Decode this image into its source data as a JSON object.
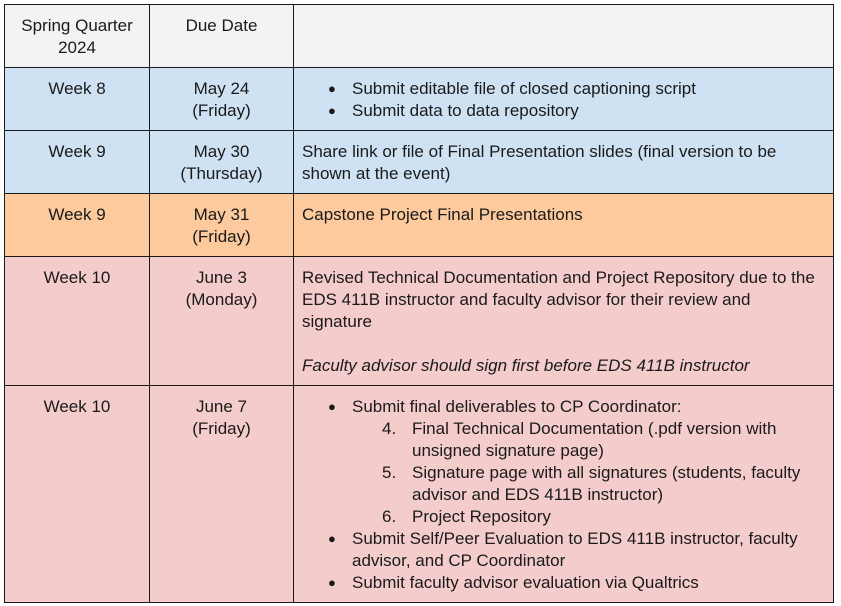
{
  "header": {
    "col1": "Spring Quarter 2024",
    "col2": "Due Date",
    "col3": ""
  },
  "rows": [
    {
      "week": "Week 8",
      "date": "May 24",
      "day": "(Friday)",
      "bullets": [
        "Submit editable file of closed captioning script",
        "Submit data to data repository"
      ]
    },
    {
      "week": "Week 9",
      "date": "May 30",
      "day": "(Thursday)",
      "text": "Share link or file of Final Presentation slides (final version to be shown at the event)"
    },
    {
      "week": "Week 9",
      "date": "May 31",
      "day": "(Friday)",
      "text": "Capstone Project Final Presentations"
    },
    {
      "week": "Week 10",
      "date": "June 3",
      "day": "(Monday)",
      "text": "Revised Technical Documentation and Project Repository due to the EDS 411B instructor and faculty advisor for their review and signature",
      "note": "Faculty advisor should sign first before EDS 411B instructor"
    },
    {
      "week": "Week 10",
      "date": "June 7",
      "day": "(Friday)",
      "bullet1": "Submit final deliverables to CP Coordinator:",
      "numbered": [
        {
          "num": "4.",
          "text": "Final Technical Documentation (.pdf version with unsigned signature page)"
        },
        {
          "num": "5.",
          "text": "Signature page with all signatures (students, faculty advisor and EDS 411B instructor)"
        },
        {
          "num": "6.",
          "text": "Project Repository"
        }
      ],
      "bullet2": "Submit Self/Peer Evaluation to EDS 411B instructor, faculty advisor, and CP Coordinator",
      "bullet3": "Submit faculty advisor evaluation via Qualtrics"
    }
  ],
  "colors": {
    "header": "#f3f3f3",
    "blue": "#cfe2f3",
    "orange": "#fcca9c",
    "pink": "#f4cccc"
  }
}
